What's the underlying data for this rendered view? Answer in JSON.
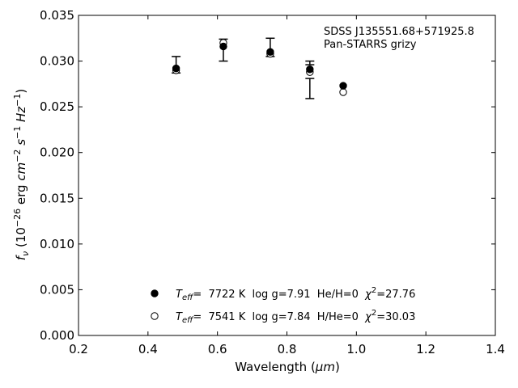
{
  "chart_data": {
    "type": "scatter",
    "xlabel_main": "Wavelength (",
    "xlabel_unit": "μm",
    "xlabel_close": ")",
    "ylabel_f": "f",
    "ylabel_nu": "ν",
    "ylabel_rest": " (10",
    "ylabel_exp1": "−26",
    "ylabel_mid": " erg ",
    "ylabel_cm": "cm",
    "ylabel_exp2": "−2",
    "ylabel_s": " s",
    "ylabel_exp3": "−1",
    "ylabel_hz": " Hz",
    "ylabel_exp4": "−1",
    "ylabel_end": ")",
    "xlim": [
      0.2,
      1.4
    ],
    "ylim": [
      0.0,
      0.035
    ],
    "xticks": [
      "0.2",
      "0.4",
      "0.6",
      "0.8",
      "1.0",
      "1.2",
      "1.4"
    ],
    "yticks": [
      "0.000",
      "0.005",
      "0.010",
      "0.015",
      "0.020",
      "0.025",
      "0.030",
      "0.035"
    ],
    "grid": false,
    "annotations": [
      "SDSS J135551.68+571925.8",
      "Pan-STARRS grizy"
    ],
    "observed": {
      "x": [
        0.481,
        0.617,
        0.752,
        0.866,
        0.866
      ],
      "y": [
        0.0296,
        0.0312,
        0.0315,
        0.0298,
        0.027
      ],
      "yerr": [
        0.0009,
        0.0012,
        0.001,
        0.0002,
        0.0011
      ]
    },
    "series": [
      {
        "marker": "filled",
        "x": [
          0.481,
          0.617,
          0.752,
          0.866,
          0.962
        ],
        "y": [
          0.0292,
          0.0316,
          0.031,
          0.0291,
          0.0273
        ],
        "legend": {
          "T": "T",
          "sub": "eff",
          "text": "=  7722 K  log g=7.91  He/H=0  ",
          "chi": "χ",
          "sup": "2",
          "chi_val": "=27.76"
        }
      },
      {
        "marker": "open",
        "x": [
          0.481,
          0.617,
          0.752,
          0.866,
          0.962
        ],
        "y": [
          0.029,
          0.032,
          0.0308,
          0.0288,
          0.0266
        ],
        "legend": {
          "T": "T",
          "sub": "eff",
          "text": "=  7541 K  log g=7.84  H/He=0  ",
          "chi": "χ",
          "sup": "2",
          "chi_val": "=30.03"
        }
      }
    ],
    "legend_position": "lower-center"
  }
}
